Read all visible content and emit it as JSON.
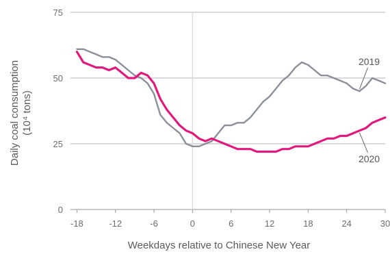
{
  "chart_data": {
    "type": "line",
    "title": "",
    "xlabel": "Weekdays relative to Chinese New Year",
    "ylabel_lines": [
      "Daily coal consumption",
      "(10⁴ tons)"
    ],
    "xlim": [
      -19,
      30
    ],
    "ylim": [
      0,
      75
    ],
    "x_ticks": [
      -18,
      -12,
      -6,
      0,
      6,
      12,
      18,
      24,
      30
    ],
    "x_tick_labels": [
      "-18",
      "-12",
      "-6",
      "0",
      "6",
      "12",
      "18",
      "24",
      "30"
    ],
    "y_ticks": [
      0,
      25,
      50,
      75
    ],
    "y_tick_labels": [
      "0",
      "25",
      "50",
      "75"
    ],
    "grid": "horizontal",
    "reference_line_x": 0,
    "series": [
      {
        "name": "2019",
        "color": "#8a8f99",
        "x": [
          -18,
          -17,
          -16,
          -15,
          -14,
          -13,
          -12,
          -11,
          -10,
          -9,
          -8,
          -7,
          -6,
          -5,
          -4,
          -3,
          -2,
          -1,
          0,
          1,
          2,
          3,
          4,
          5,
          6,
          7,
          8,
          9,
          10,
          11,
          12,
          13,
          14,
          15,
          16,
          17,
          18,
          19,
          20,
          21,
          22,
          23,
          24,
          25,
          26,
          27,
          28,
          29,
          30
        ],
        "values": [
          61,
          61,
          60,
          59,
          58,
          58,
          57,
          55,
          53,
          51,
          50,
          48,
          44,
          36,
          33,
          31,
          29,
          25,
          24,
          24,
          25,
          26,
          29,
          32,
          32,
          33,
          33,
          35,
          38,
          41,
          43,
          46,
          49,
          51,
          54,
          56,
          55,
          53,
          51,
          51,
          50,
          49,
          48,
          46,
          45,
          47,
          50,
          49,
          48
        ]
      },
      {
        "name": "2020",
        "color": "#e0197d",
        "x": [
          -18,
          -17,
          -16,
          -15,
          -14,
          -13,
          -12,
          -11,
          -10,
          -9,
          -8,
          -7,
          -6,
          -5,
          -4,
          -3,
          -2,
          -1,
          0,
          1,
          2,
          3,
          4,
          5,
          6,
          7,
          8,
          9,
          10,
          11,
          12,
          13,
          14,
          15,
          16,
          17,
          18,
          19,
          20,
          21,
          22,
          23,
          24,
          25,
          26,
          27,
          28,
          29,
          30
        ],
        "values": [
          60,
          56,
          55,
          54,
          54,
          53,
          54,
          52,
          50,
          50,
          52,
          51,
          48,
          42,
          38,
          35,
          32,
          30,
          29,
          27,
          26,
          27,
          26,
          25,
          24,
          23,
          23,
          23,
          22,
          22,
          22,
          22,
          23,
          23,
          24,
          24,
          24,
          25,
          26,
          27,
          27,
          28,
          28,
          29,
          30,
          31,
          33,
          34,
          35
        ]
      }
    ],
    "annotations": [
      {
        "text": "2019",
        "x": 27.5,
        "y": 55,
        "series": "2019"
      },
      {
        "text": "2020",
        "x": 27.5,
        "y": 18,
        "series": "2020"
      }
    ]
  }
}
